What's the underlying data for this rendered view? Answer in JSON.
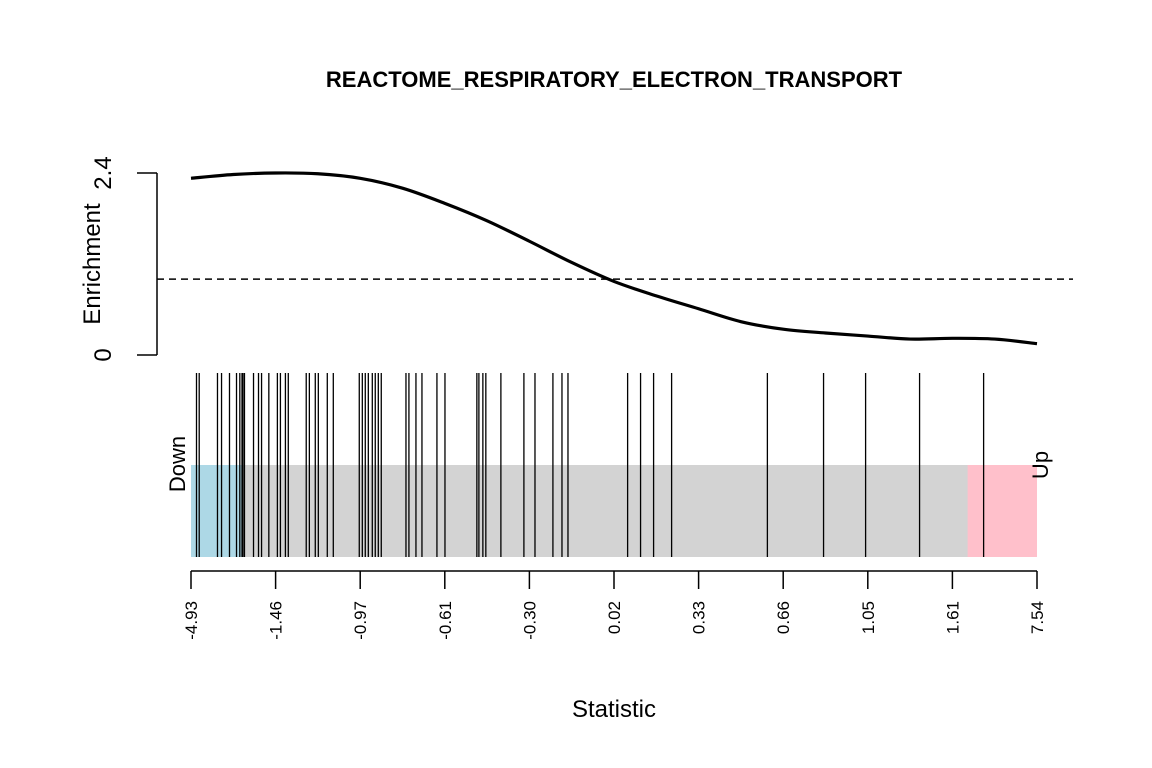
{
  "chart_data": {
    "type": "barcode",
    "title": "REACTOME_RESPIRATORY_ELECTRON_TRANSPORT",
    "xlabel": "Statistic",
    "ylabel": "Enrichment",
    "down_label": "Down",
    "up_label": "Up",
    "enrichment_axis": {
      "ylim": [
        0,
        2.4
      ],
      "ticks": [
        "0",
        "2.4"
      ]
    },
    "reference_line": 1.0,
    "x_tick_labels": [
      "-4.93",
      "-1.46",
      "-0.97",
      "-0.61",
      "-0.30",
      "0.02",
      "0.33",
      "0.66",
      "1.05",
      "1.61",
      "7.54"
    ],
    "enrichment_curve": {
      "x_rank": [
        0.0,
        0.05,
        0.1,
        0.15,
        0.2,
        0.25,
        0.3,
        0.35,
        0.4,
        0.45,
        0.5,
        0.55,
        0.6,
        0.65,
        0.7,
        0.75,
        0.8,
        0.85,
        0.9,
        0.95,
        1.0
      ],
      "y": [
        2.33,
        2.38,
        2.4,
        2.39,
        2.33,
        2.2,
        2.0,
        1.77,
        1.5,
        1.22,
        0.97,
        0.78,
        0.61,
        0.44,
        0.34,
        0.29,
        0.25,
        0.21,
        0.22,
        0.21,
        0.15
      ]
    },
    "gene_ranks": [
      0.0065,
      0.0097,
      0.0313,
      0.0361,
      0.0455,
      0.0538,
      0.0577,
      0.0603,
      0.0614,
      0.0632,
      0.0739,
      0.0798,
      0.0834,
      0.092,
      0.1021,
      0.1057,
      0.1116,
      0.115,
      0.1362,
      0.1399,
      0.1469,
      0.1505,
      0.1611,
      0.1682,
      0.1989,
      0.2025,
      0.206,
      0.2096,
      0.2143,
      0.2178,
      0.2214,
      0.2249,
      0.2541,
      0.2576,
      0.2659,
      0.273,
      0.2907,
      0.3002,
      0.3379,
      0.3403,
      0.345,
      0.3485,
      0.3663,
      0.3935,
      0.4066,
      0.4278,
      0.4385,
      0.4456,
      0.5161,
      0.5314,
      0.5468,
      0.5681,
      0.6813,
      0.7477,
      0.7974,
      0.8612,
      0.9369
    ],
    "bar_regions": {
      "down_end": 0.06,
      "up_start": 0.918
    },
    "colors": {
      "curve": "#000000",
      "down": "#add8e6",
      "up": "#ffc0cb",
      "middle": "#d3d3d3",
      "bars": "#000000"
    }
  }
}
